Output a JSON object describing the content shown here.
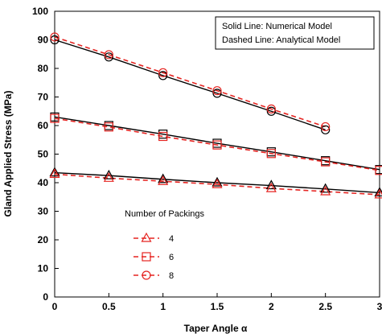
{
  "chart_data": {
    "type": "line",
    "xlabel": "Taper Angle α",
    "ylabel": "Gland Applied Stress (MPa)",
    "xlim": [
      0,
      3
    ],
    "ylim": [
      0,
      100
    ],
    "xticks": [
      "0",
      "0.5",
      "1",
      "1.5",
      "2",
      "2.5",
      "3"
    ],
    "yticks": [
      "0",
      "10",
      "20",
      "30",
      "40",
      "50",
      "60",
      "70",
      "80",
      "90",
      "100"
    ],
    "grid": false,
    "annotation": {
      "line1": "Solid Line: Numerical Model",
      "line2": "Dashed Line: Analytical Model"
    },
    "legend": {
      "title": "Number of Packings",
      "position": "bottom-left",
      "entries": [
        "4",
        "6",
        "8"
      ]
    },
    "series": [
      {
        "name": "4",
        "marker": "triangle",
        "x": [
          0,
          0.5,
          1,
          1.5,
          2,
          2.5,
          3
        ],
        "numerical": [
          43.5,
          42.5,
          41.2,
          40.0,
          39.0,
          37.8,
          36.5
        ],
        "analytical": [
          43.0,
          41.6,
          40.5,
          39.4,
          38.0,
          36.9,
          35.8
        ]
      },
      {
        "name": "6",
        "marker": "square",
        "x": [
          0,
          0.5,
          1,
          1.5,
          2,
          2.5,
          3
        ],
        "numerical": [
          63.0,
          60.0,
          57.0,
          53.8,
          50.8,
          47.7,
          44.6
        ],
        "analytical": [
          62.5,
          59.5,
          56.2,
          53.2,
          50.2,
          47.3,
          44.3
        ]
      },
      {
        "name": "8",
        "marker": "circle",
        "x": [
          0,
          0.5,
          1,
          1.5,
          2,
          2.5
        ],
        "numerical": [
          90.0,
          84.0,
          77.5,
          71.3,
          65.0,
          58.5
        ],
        "analytical": [
          91.0,
          84.8,
          78.5,
          72.2,
          65.8,
          59.6
        ]
      }
    ],
    "colors": {
      "numerical": "#000000",
      "analytical": "#e52421"
    }
  }
}
